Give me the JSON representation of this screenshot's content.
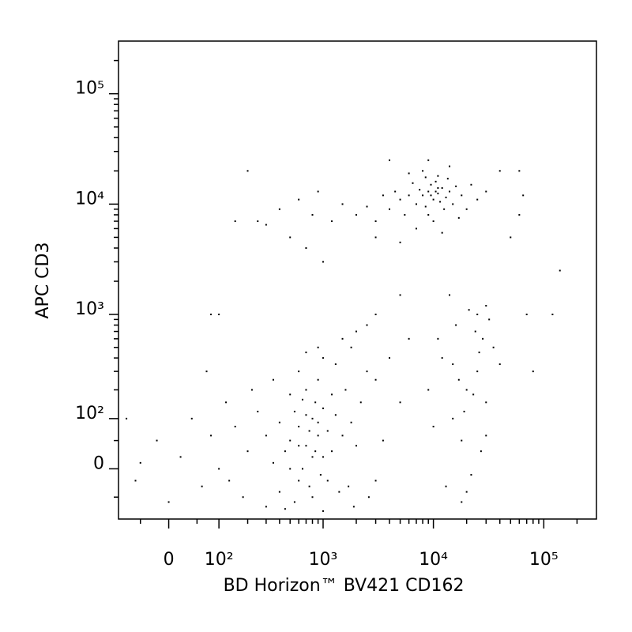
{
  "chart_data": {
    "type": "scatter",
    "scale": "asinh",
    "xlabel": "BD Horizon™ BV421 CD162",
    "ylabel": "APC CD3",
    "color": "#000000",
    "xlim": [
      -100,
      300000
    ],
    "ylim": [
      -100,
      300000
    ],
    "xticks": [
      0,
      {
        "value": 100,
        "label": "10²"
      },
      {
        "value": 1000,
        "label": "10³"
      },
      {
        "value": 10000,
        "label": "10⁴"
      },
      {
        "value": 100000,
        "label": "10⁵"
      }
    ],
    "yticks": [
      0,
      {
        "value": 100,
        "label": "10²"
      },
      {
        "value": 1000,
        "label": "10³"
      },
      {
        "value": 10000,
        "label": "10⁴"
      },
      {
        "value": 100000,
        "label": "10⁵"
      }
    ],
    "xminor": [
      -50,
      50,
      200,
      300,
      400,
      500,
      600,
      700,
      800,
      900,
      2000,
      3000,
      4000,
      5000,
      6000,
      7000,
      8000,
      9000,
      20000,
      30000,
      40000,
      50000,
      60000,
      70000,
      80000,
      90000,
      200000
    ],
    "yminor": [
      -50,
      50,
      200,
      300,
      400,
      500,
      600,
      700,
      800,
      900,
      2000,
      3000,
      4000,
      5000,
      6000,
      7000,
      8000,
      9000,
      20000,
      30000,
      40000,
      50000,
      60000,
      70000,
      80000,
      90000,
      200000
    ],
    "x": [
      8000,
      9000,
      10000,
      11000,
      12000,
      7000,
      13000,
      9500,
      8500,
      11500,
      6000,
      14000,
      10500,
      7500,
      12500,
      5000,
      15000,
      9000,
      4000,
      3500,
      16000,
      6500,
      11000,
      13500,
      5500,
      18000,
      3000,
      2500,
      20000,
      4500,
      8000,
      10000,
      22000,
      2000,
      7000,
      12000,
      17000,
      6000,
      14000,
      3000,
      25000,
      9000,
      1500,
      1200,
      30000,
      5000,
      8500,
      11000,
      9500,
      10500,
      400,
      300,
      600,
      800,
      250,
      900,
      500,
      200,
      150,
      700,
      1000,
      500,
      600,
      700,
      800,
      900,
      1000,
      650,
      750,
      550,
      850,
      950,
      1100,
      1200,
      450,
      400,
      700,
      800,
      600,
      900,
      1000,
      1300,
      1500,
      1400,
      350,
      300,
      500,
      750,
      850,
      650,
      550,
      1100,
      1200,
      1600,
      1800,
      2000,
      2200,
      2500,
      1700,
      400,
      250,
      200,
      180,
      150,
      120,
      100,
      80,
      60,
      40,
      20,
      0,
      -20,
      -50,
      130,
      220,
      300,
      350,
      600,
      1000,
      1300,
      1800,
      2000,
      2500,
      1500,
      900,
      700,
      3000,
      3500,
      4000,
      5000,
      6000,
      3000,
      2600,
      1900,
      1000,
      450,
      800,
      900,
      700,
      600,
      500,
      15000,
      20000,
      25000,
      18000,
      22000,
      30000,
      12000,
      28000,
      16000,
      25000,
      30000,
      20000,
      10000,
      35000,
      17000,
      13000,
      24000,
      19000,
      27000,
      32000,
      14000,
      40000,
      9000,
      11000,
      26000,
      21000,
      18000,
      30000,
      23000,
      15000,
      80000,
      120000,
      140000,
      60000,
      65000,
      50000,
      70000,
      5000,
      3000,
      100,
      80,
      70,
      60000,
      40000,
      4000,
      -80,
      -60
    ],
    "values": [
      12000,
      13000,
      11000,
      12500,
      14000,
      10000,
      11500,
      15000,
      9500,
      10500,
      12000,
      13000,
      16000,
      13500,
      9000,
      11000,
      10000,
      8000,
      9000,
      12000,
      14500,
      15500,
      18000,
      17000,
      8000,
      12000,
      7000,
      9500,
      9000,
      13000,
      20000,
      7000,
      15000,
      8000,
      6000,
      5500,
      7500,
      19000,
      22000,
      5000,
      11000,
      25000,
      10000,
      7000,
      13000,
      4500,
      17500,
      14000,
      12000,
      13000,
      9000,
      6500,
      11000,
      8000,
      7000,
      13000,
      5000,
      20000,
      7000,
      4000,
      3000,
      50,
      80,
      40,
      100,
      60,
      20,
      0,
      -30,
      120,
      150,
      -10,
      70,
      30,
      30,
      90,
      200,
      -50,
      -20,
      250,
      130,
      110,
      60,
      -40,
      10,
      60,
      180,
      70,
      30,
      160,
      -60,
      -20,
      180,
      200,
      90,
      40,
      150,
      300,
      -30,
      -40,
      120,
      30,
      -50,
      80,
      150,
      0,
      60,
      -30,
      100,
      20,
      -60,
      50,
      10,
      -20,
      200,
      -70,
      250,
      300,
      400,
      350,
      500,
      700,
      800,
      600,
      500,
      450,
      250,
      50,
      400,
      150,
      600,
      -20,
      -50,
      -70,
      -80,
      -75,
      20,
      90,
      110,
      40,
      0,
      100,
      200,
      300,
      50,
      -10,
      150,
      400,
      600,
      800,
      1000,
      1200,
      -40,
      80,
      500,
      250,
      -30,
      700,
      120,
      30,
      900,
      1500,
      350,
      200,
      600,
      450,
      1100,
      -60,
      60,
      180,
      350,
      300,
      1000,
      2500,
      8000,
      12000,
      5000,
      1000,
      1500,
      1000,
      1000,
      1000,
      300,
      20000,
      20000,
      25000,
      100,
      -20
    ]
  }
}
